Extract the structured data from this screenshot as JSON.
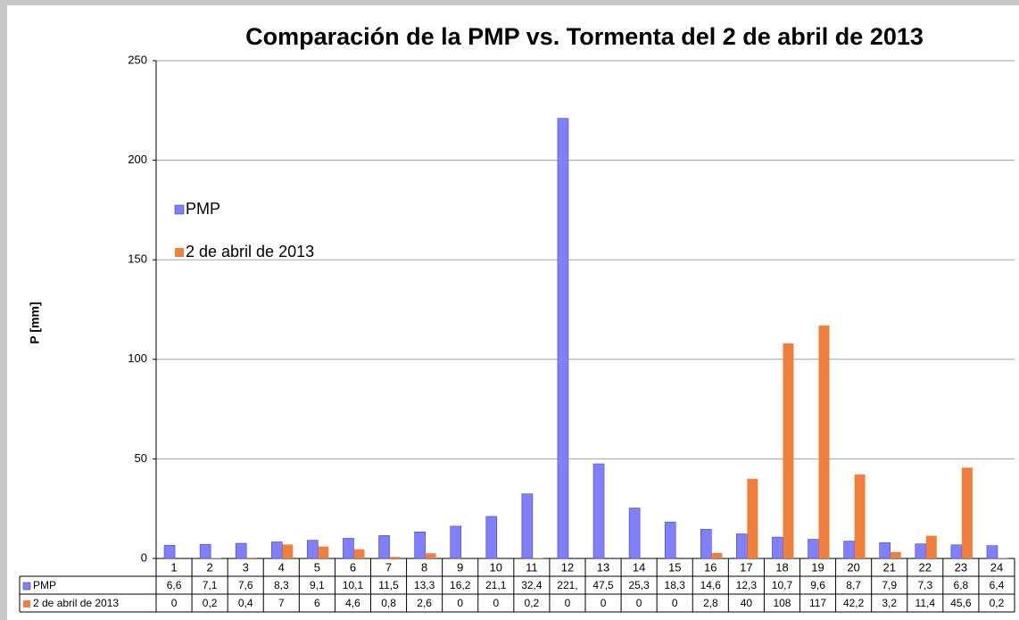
{
  "chart_data": {
    "type": "bar",
    "title": "Comparación de la PMP vs. Tormenta del 2 de abril de 2013",
    "y_label": "P [mm]",
    "categories": [
      "1",
      "2",
      "3",
      "4",
      "5",
      "6",
      "7",
      "8",
      "9",
      "10",
      "11",
      "12",
      "13",
      "14",
      "15",
      "16",
      "17",
      "18",
      "19",
      "20",
      "21",
      "22",
      "23",
      "24"
    ],
    "series": [
      {
        "name": "PMP",
        "color": "#8080ff",
        "values": [
          6.6,
          7.1,
          7.6,
          8.3,
          9.1,
          10.1,
          11.5,
          13.3,
          16.2,
          21.1,
          32.4,
          221,
          47.5,
          25.3,
          18.3,
          14.6,
          12.3,
          10.7,
          9.6,
          8.7,
          7.9,
          7.3,
          6.8,
          6.4
        ],
        "value_labels": [
          "6,6",
          "7,1",
          "7,6",
          "8,3",
          "9,1",
          "10,1",
          "11,5",
          "13,3",
          "16,2",
          "21,1",
          "32,4",
          "221,",
          "47,5",
          "25,3",
          "18,3",
          "14,6",
          "12,3",
          "10,7",
          "9,6",
          "8,7",
          "7,9",
          "7,3",
          "6,8",
          "6,4"
        ]
      },
      {
        "name": "2 de abril de 2013",
        "color": "#f07f3c",
        "values": [
          0,
          0.2,
          0.4,
          7,
          6,
          4.6,
          0.8,
          2.6,
          0,
          0,
          0.2,
          0,
          0,
          0,
          0,
          2.8,
          40,
          108,
          117,
          42.2,
          3.2,
          11.4,
          45.6,
          0.2
        ],
        "value_labels": [
          "0",
          "0,2",
          "0,4",
          "7",
          "6",
          "4,6",
          "0,8",
          "2,6",
          "0",
          "0",
          "0,2",
          "0",
          "0",
          "0",
          "0",
          "2,8",
          "40",
          "108",
          "117",
          "42,2",
          "3,2",
          "11,4",
          "45,6",
          "0,2"
        ]
      }
    ],
    "ylim": [
      0,
      250
    ],
    "yticks": [
      0,
      50,
      100,
      150,
      200,
      250
    ],
    "grid": true,
    "legend": "upper left"
  }
}
